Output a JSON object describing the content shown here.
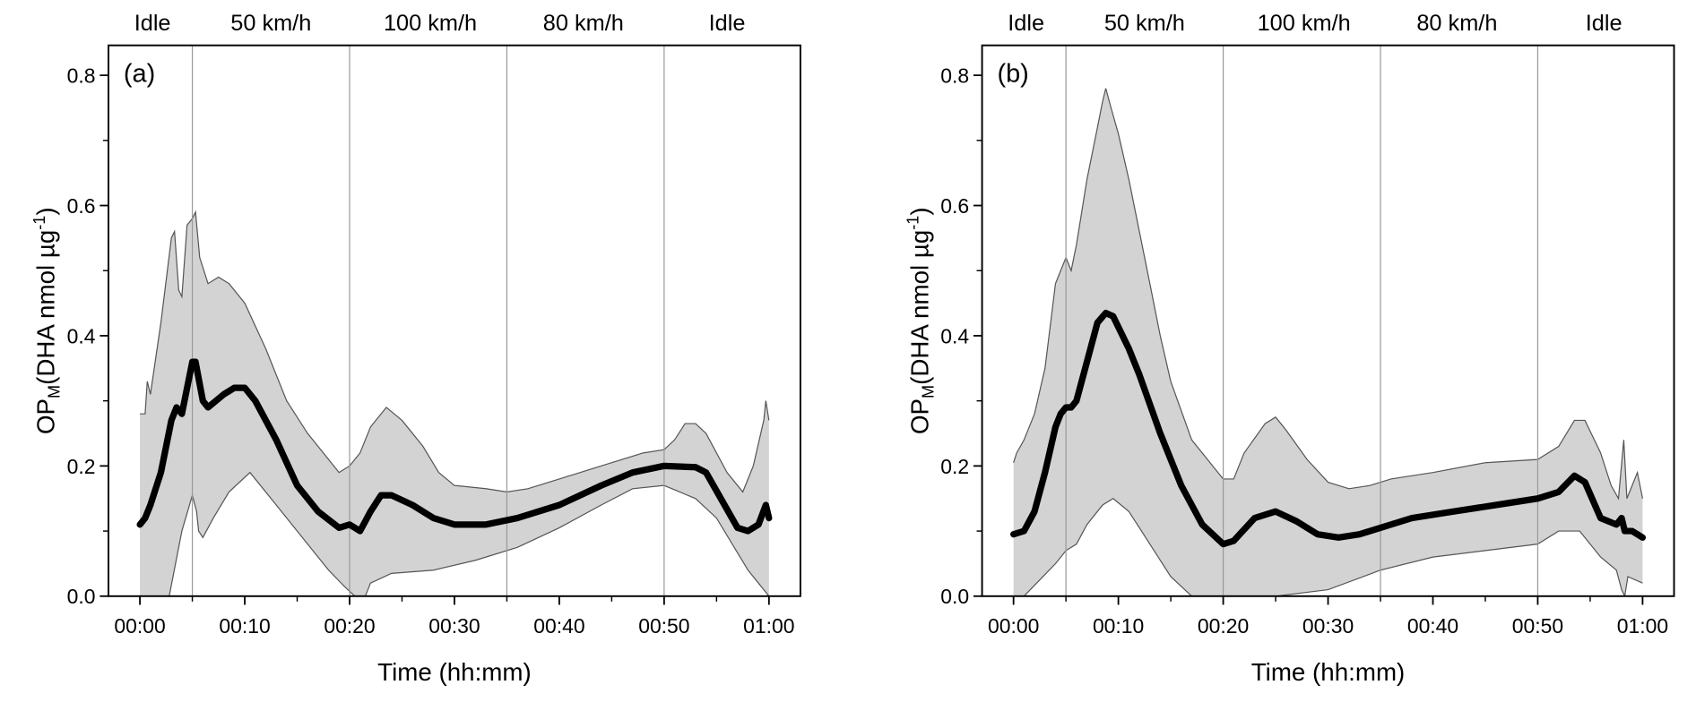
{
  "chart_data": [
    {
      "type": "area",
      "panel_label": "(a)",
      "xlabel": "Time (hh:mm)",
      "ylabel_main": "OP",
      "ylabel_sub": "M",
      "ylabel_rest": "(DHA nmol  µg",
      "ylabel_sup": "-1",
      "ylabel_close": ")",
      "xlim_minutes": [
        -3,
        63
      ],
      "ylim": [
        0,
        0.846
      ],
      "x_ticks_minutes": [
        0,
        10,
        20,
        30,
        40,
        50,
        60
      ],
      "x_tick_labels": [
        "00:00",
        "00:10",
        "00:20",
        "00:30",
        "00:40",
        "00:50",
        "01:00"
      ],
      "y_ticks": [
        0,
        0.2,
        0.4,
        0.6,
        0.8
      ],
      "y_tick_labels": [
        "0.0",
        "0.2",
        "0.4",
        "0.6",
        "0.8"
      ],
      "phase_boundaries_minutes": [
        5,
        20,
        35,
        50
      ],
      "phases": [
        {
          "label": "Idle",
          "center": 1.2
        },
        {
          "label": "50 km/h",
          "center": 12.5
        },
        {
          "label": "100 km/h",
          "center": 27.7
        },
        {
          "label": "80 km/h",
          "center": 42.3
        },
        {
          "label": "Idle",
          "center": 56
        }
      ],
      "series": {
        "mean": {
          "name": "mean",
          "x": [
            0,
            0.5,
            1,
            2,
            3,
            3.5,
            4,
            5,
            5.3,
            6,
            6.5,
            8,
            9,
            10,
            11,
            13,
            15,
            17,
            19,
            20,
            21,
            22,
            23,
            24,
            26,
            28,
            30,
            33,
            36,
            40,
            44,
            47,
            50,
            53,
            54,
            57,
            58,
            59,
            59.7,
            60
          ],
          "y": [
            0.11,
            0.12,
            0.14,
            0.19,
            0.27,
            0.29,
            0.28,
            0.36,
            0.36,
            0.3,
            0.29,
            0.31,
            0.32,
            0.32,
            0.3,
            0.24,
            0.17,
            0.13,
            0.105,
            0.11,
            0.1,
            0.13,
            0.155,
            0.155,
            0.14,
            0.12,
            0.11,
            0.11,
            0.12,
            0.14,
            0.17,
            0.19,
            0.2,
            0.198,
            0.19,
            0.105,
            0.1,
            0.11,
            0.14,
            0.12
          ]
        },
        "upper": {
          "name": "upper bound",
          "x": [
            0,
            0.5,
            0.7,
            1,
            2,
            3,
            3.3,
            3.7,
            4,
            4.5,
            5,
            5.3,
            5.7,
            6.5,
            7.5,
            8.5,
            10,
            12,
            14,
            16,
            18,
            19,
            20,
            21,
            22,
            23.5,
            25,
            27,
            28.5,
            30,
            33,
            35,
            37,
            40,
            44,
            48,
            50,
            51,
            52,
            53,
            54,
            56,
            57.5,
            58.5,
            59.5,
            59.7,
            60
          ],
          "y": [
            0.28,
            0.28,
            0.33,
            0.31,
            0.42,
            0.55,
            0.56,
            0.47,
            0.46,
            0.57,
            0.58,
            0.59,
            0.52,
            0.48,
            0.49,
            0.48,
            0.45,
            0.38,
            0.3,
            0.25,
            0.21,
            0.19,
            0.2,
            0.22,
            0.26,
            0.29,
            0.27,
            0.23,
            0.19,
            0.17,
            0.165,
            0.16,
            0.165,
            0.18,
            0.2,
            0.22,
            0.225,
            0.24,
            0.265,
            0.265,
            0.25,
            0.19,
            0.16,
            0.2,
            0.27,
            0.3,
            0.27
          ]
        },
        "lower": {
          "name": "lower bound",
          "x": [
            0,
            2.8,
            4,
            5,
            5.4,
            5.6,
            6,
            7,
            8.5,
            10.5,
            13,
            16,
            18,
            19.5,
            20.5,
            21,
            21.5,
            22,
            24,
            28,
            32,
            36,
            40,
            44,
            47,
            50,
            53,
            55,
            58,
            60
          ],
          "y": [
            -0.1,
            0,
            0.1,
            0.155,
            0.13,
            0.1,
            0.09,
            0.12,
            0.16,
            0.19,
            0.14,
            0.08,
            0.04,
            0.015,
            0,
            -0.02,
            0,
            0.02,
            0.035,
            0.04,
            0.055,
            0.075,
            0.105,
            0.14,
            0.165,
            0.17,
            0.15,
            0.12,
            0.04,
            -0.02
          ]
        }
      }
    },
    {
      "type": "area",
      "panel_label": "(b)",
      "xlabel": "Time (hh:mm)",
      "ylabel_main": "OP",
      "ylabel_sub": "M",
      "ylabel_rest": "(DHA nmol  µg",
      "ylabel_sup": "-1",
      "ylabel_close": ")",
      "xlim_minutes": [
        -3,
        63
      ],
      "ylim": [
        0,
        0.846
      ],
      "x_ticks_minutes": [
        0,
        10,
        20,
        30,
        40,
        50,
        60
      ],
      "x_tick_labels": [
        "00:00",
        "00:10",
        "00:20",
        "00:30",
        "00:40",
        "00:50",
        "01:00"
      ],
      "y_ticks": [
        0,
        0.2,
        0.4,
        0.6,
        0.8
      ],
      "y_tick_labels": [
        "0.0",
        "0.2",
        "0.4",
        "0.6",
        "0.8"
      ],
      "phase_boundaries_minutes": [
        5,
        20,
        35,
        50
      ],
      "phases": [
        {
          "label": "Idle",
          "center": 1.2
        },
        {
          "label": "50 km/h",
          "center": 12.5
        },
        {
          "label": "100 km/h",
          "center": 27.7
        },
        {
          "label": "80 km/h",
          "center": 42.3
        },
        {
          "label": "Idle",
          "center": 56.3
        }
      ],
      "series": {
        "mean": {
          "name": "mean",
          "x": [
            0,
            1,
            2,
            3,
            4,
            4.5,
            5,
            5.5,
            6,
            7,
            8,
            8.8,
            9.5,
            11,
            12,
            14,
            16,
            18,
            20,
            21,
            23,
            25,
            27,
            29,
            31,
            33,
            36,
            38,
            42,
            46,
            50,
            52,
            53.5,
            54.5,
            56,
            57.5,
            58,
            58.3,
            59,
            60
          ],
          "y": [
            0.095,
            0.1,
            0.13,
            0.19,
            0.26,
            0.28,
            0.29,
            0.29,
            0.3,
            0.36,
            0.42,
            0.435,
            0.43,
            0.38,
            0.34,
            0.25,
            0.17,
            0.11,
            0.08,
            0.085,
            0.12,
            0.13,
            0.115,
            0.095,
            0.09,
            0.095,
            0.11,
            0.12,
            0.13,
            0.14,
            0.15,
            0.16,
            0.185,
            0.175,
            0.12,
            0.11,
            0.12,
            0.1,
            0.1,
            0.09
          ]
        },
        "upper": {
          "name": "upper bound",
          "x": [
            0,
            0.3,
            1,
            2,
            3,
            4,
            4.5,
            5,
            5.5,
            6,
            7,
            8,
            8.5,
            8.8,
            9.3,
            10,
            11,
            12,
            13,
            14,
            15,
            17,
            19,
            20,
            21,
            22,
            24,
            25,
            26,
            28,
            30,
            32,
            34,
            36,
            40,
            45,
            50,
            52,
            53.5,
            54.5,
            56,
            57,
            57.7,
            58.2,
            58.5,
            59.5,
            60
          ],
          "y": [
            0.205,
            0.22,
            0.24,
            0.28,
            0.35,
            0.48,
            0.5,
            0.52,
            0.5,
            0.54,
            0.64,
            0.72,
            0.76,
            0.78,
            0.75,
            0.71,
            0.64,
            0.56,
            0.48,
            0.4,
            0.33,
            0.24,
            0.2,
            0.18,
            0.18,
            0.22,
            0.265,
            0.275,
            0.255,
            0.21,
            0.175,
            0.165,
            0.17,
            0.18,
            0.19,
            0.205,
            0.21,
            0.23,
            0.27,
            0.27,
            0.22,
            0.17,
            0.15,
            0.24,
            0.15,
            0.19,
            0.15
          ]
        },
        "lower": {
          "name": "lower bound",
          "x": [
            0,
            1,
            4,
            5,
            6,
            7,
            8.5,
            9.5,
            11,
            13,
            15,
            17,
            20,
            25,
            30,
            35,
            40,
            45,
            50,
            52,
            54,
            56,
            57.5,
            58,
            58.3,
            58.6,
            60
          ],
          "y": [
            -0.02,
            0,
            0.05,
            0.07,
            0.08,
            0.11,
            0.14,
            0.15,
            0.13,
            0.08,
            0.03,
            0,
            -0.03,
            -0.02,
            0.01,
            0.04,
            0.06,
            0.07,
            0.08,
            0.1,
            0.1,
            0.06,
            0.04,
            0.01,
            -0.01,
            0.03,
            0.02
          ]
        }
      }
    }
  ]
}
